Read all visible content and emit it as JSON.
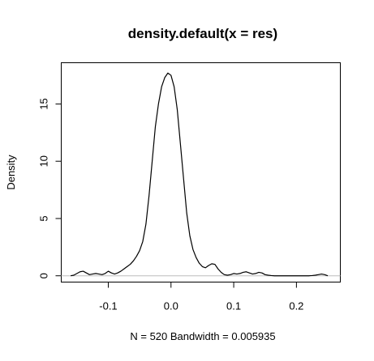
{
  "chart_data": {
    "type": "line",
    "title": "density.default(x = res)",
    "xlabel": "N = 520   Bandwidth = 0.005935",
    "ylabel": "Density",
    "xlim": [
      -0.175,
      0.27
    ],
    "ylim": [
      -0.55,
      18.6
    ],
    "xticks": [
      -0.1,
      0.0,
      0.1,
      0.2
    ],
    "xtick_labels": [
      "-0.1",
      "0.0",
      "0.1",
      "0.2"
    ],
    "yticks": [
      0,
      5,
      10,
      15
    ],
    "ytick_labels": [
      "0",
      "5",
      "10",
      "15"
    ],
    "baseline_y": 0,
    "grid": false,
    "series": [
      {
        "name": "density",
        "x": [
          -0.16,
          -0.155,
          -0.15,
          -0.145,
          -0.14,
          -0.135,
          -0.13,
          -0.125,
          -0.12,
          -0.115,
          -0.11,
          -0.105,
          -0.1,
          -0.095,
          -0.09,
          -0.085,
          -0.08,
          -0.075,
          -0.07,
          -0.065,
          -0.06,
          -0.055,
          -0.05,
          -0.045,
          -0.04,
          -0.035,
          -0.03,
          -0.025,
          -0.02,
          -0.015,
          -0.01,
          -0.005,
          0.0,
          0.005,
          0.01,
          0.015,
          0.02,
          0.025,
          0.03,
          0.035,
          0.04,
          0.045,
          0.05,
          0.055,
          0.06,
          0.065,
          0.07,
          0.075,
          0.08,
          0.085,
          0.09,
          0.095,
          0.1,
          0.105,
          0.11,
          0.115,
          0.12,
          0.125,
          0.13,
          0.135,
          0.14,
          0.145,
          0.15,
          0.155,
          0.16,
          0.165,
          0.17,
          0.175,
          0.18,
          0.185,
          0.19,
          0.195,
          0.2,
          0.205,
          0.21,
          0.215,
          0.22,
          0.225,
          0.23,
          0.235,
          0.24,
          0.245,
          0.25
        ],
        "y": [
          0.0,
          0.05,
          0.2,
          0.35,
          0.4,
          0.25,
          0.1,
          0.15,
          0.2,
          0.15,
          0.1,
          0.2,
          0.4,
          0.25,
          0.15,
          0.25,
          0.4,
          0.6,
          0.8,
          1.0,
          1.3,
          1.7,
          2.2,
          3.0,
          4.5,
          7.0,
          10.0,
          13.0,
          15.0,
          16.5,
          17.3,
          17.7,
          17.5,
          16.5,
          14.5,
          11.5,
          8.5,
          5.5,
          3.5,
          2.3,
          1.6,
          1.1,
          0.8,
          0.7,
          0.9,
          1.05,
          1.0,
          0.6,
          0.3,
          0.1,
          0.05,
          0.1,
          0.2,
          0.15,
          0.2,
          0.3,
          0.35,
          0.25,
          0.15,
          0.2,
          0.3,
          0.25,
          0.1,
          0.05,
          0.02,
          0.0,
          0.0,
          0.0,
          0.0,
          0.0,
          0.0,
          0.0,
          0.0,
          0.0,
          0.0,
          0.0,
          0.0,
          0.02,
          0.05,
          0.1,
          0.15,
          0.1,
          0.0
        ]
      }
    ]
  }
}
